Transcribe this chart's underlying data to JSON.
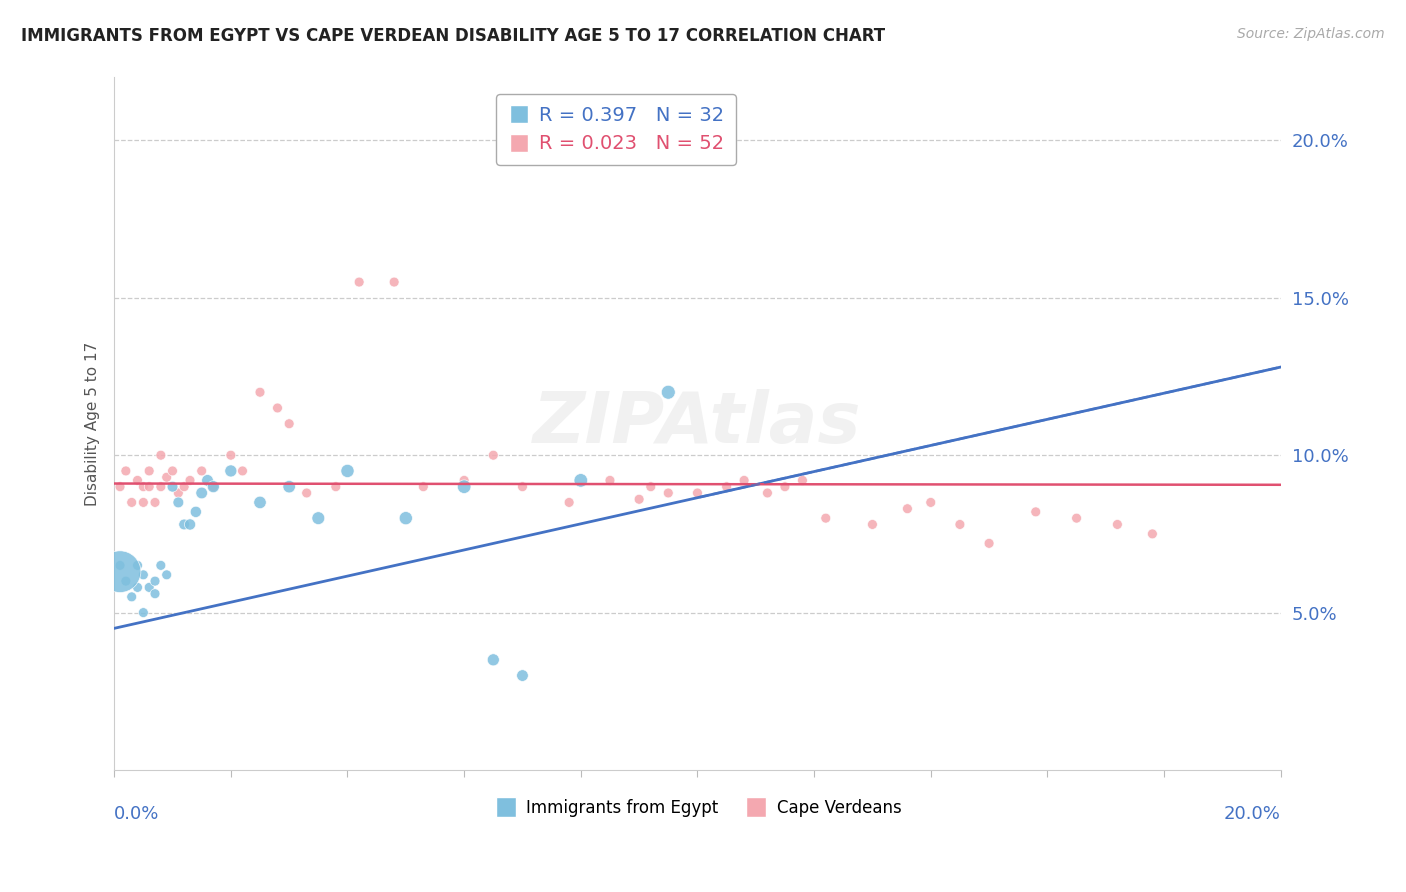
{
  "title": "IMMIGRANTS FROM EGYPT VS CAPE VERDEAN DISABILITY AGE 5 TO 17 CORRELATION CHART",
  "source": "Source: ZipAtlas.com",
  "ylabel": "Disability Age 5 to 17",
  "series1_name": "Immigrants from Egypt",
  "series2_name": "Cape Verdeans",
  "egypt_color": "#7fbfde",
  "capeverde_color": "#f4a8b0",
  "egypt_trendline_color": "#4472c4",
  "capeverde_trendline_color": "#e05070",
  "axis_label_color": "#4472c4",
  "egypt_R": 0.397,
  "egypt_N": 32,
  "capeverde_R": 0.023,
  "capeverde_N": 52,
  "xlim": [
    0.0,
    0.2
  ],
  "ylim": [
    0.0,
    0.22
  ],
  "yticks": [
    0.05,
    0.1,
    0.15,
    0.2
  ],
  "xticks": [
    0.0,
    0.02,
    0.04,
    0.06,
    0.08,
    0.1,
    0.12,
    0.14,
    0.16,
    0.18,
    0.2
  ],
  "bg_color": "#ffffff",
  "grid_color": "#cccccc",
  "egypt_x": [
    0.001,
    0.002,
    0.003,
    0.004,
    0.004,
    0.005,
    0.005,
    0.006,
    0.007,
    0.007,
    0.008,
    0.009,
    0.01,
    0.011,
    0.012,
    0.013,
    0.014,
    0.015,
    0.016,
    0.017,
    0.02,
    0.025,
    0.03,
    0.035,
    0.04,
    0.05,
    0.06,
    0.065,
    0.07,
    0.08,
    0.095,
    0.001
  ],
  "egypt_y": [
    0.065,
    0.06,
    0.055,
    0.065,
    0.058,
    0.062,
    0.05,
    0.058,
    0.056,
    0.06,
    0.065,
    0.062,
    0.09,
    0.085,
    0.078,
    0.078,
    0.082,
    0.088,
    0.092,
    0.09,
    0.095,
    0.085,
    0.09,
    0.08,
    0.095,
    0.08,
    0.09,
    0.035,
    0.03,
    0.092,
    0.12,
    0.063
  ],
  "egypt_sizes": [
    50,
    50,
    50,
    50,
    50,
    50,
    50,
    50,
    50,
    50,
    50,
    50,
    60,
    60,
    60,
    65,
    65,
    70,
    70,
    75,
    75,
    80,
    80,
    85,
    90,
    90,
    95,
    75,
    70,
    95,
    100,
    900
  ],
  "capeverde_x": [
    0.001,
    0.002,
    0.003,
    0.004,
    0.005,
    0.005,
    0.006,
    0.006,
    0.007,
    0.008,
    0.008,
    0.009,
    0.01,
    0.011,
    0.012,
    0.013,
    0.015,
    0.017,
    0.02,
    0.022,
    0.025,
    0.028,
    0.03,
    0.033,
    0.038,
    0.042,
    0.048,
    0.053,
    0.06,
    0.065,
    0.07,
    0.078,
    0.085,
    0.092,
    0.1,
    0.108,
    0.115,
    0.122,
    0.13,
    0.14,
    0.15,
    0.158,
    0.165,
    0.172,
    0.178,
    0.09,
    0.095,
    0.105,
    0.112,
    0.118,
    0.136,
    0.145
  ],
  "capeverde_y": [
    0.09,
    0.095,
    0.085,
    0.092,
    0.09,
    0.085,
    0.095,
    0.09,
    0.085,
    0.1,
    0.09,
    0.093,
    0.095,
    0.088,
    0.09,
    0.092,
    0.095,
    0.09,
    0.1,
    0.095,
    0.12,
    0.115,
    0.11,
    0.088,
    0.09,
    0.155,
    0.155,
    0.09,
    0.092,
    0.1,
    0.09,
    0.085,
    0.092,
    0.09,
    0.088,
    0.092,
    0.09,
    0.08,
    0.078,
    0.085,
    0.072,
    0.082,
    0.08,
    0.078,
    0.075,
    0.086,
    0.088,
    0.09,
    0.088,
    0.092,
    0.083,
    0.078
  ],
  "capeverde_sizes": [
    50,
    50,
    50,
    50,
    50,
    50,
    50,
    50,
    50,
    50,
    50,
    50,
    50,
    50,
    50,
    50,
    50,
    50,
    50,
    50,
    50,
    50,
    50,
    50,
    50,
    50,
    50,
    50,
    50,
    50,
    50,
    50,
    50,
    50,
    50,
    50,
    50,
    50,
    50,
    50,
    50,
    50,
    50,
    50,
    50,
    50,
    50,
    50,
    50,
    50,
    50,
    50
  ]
}
